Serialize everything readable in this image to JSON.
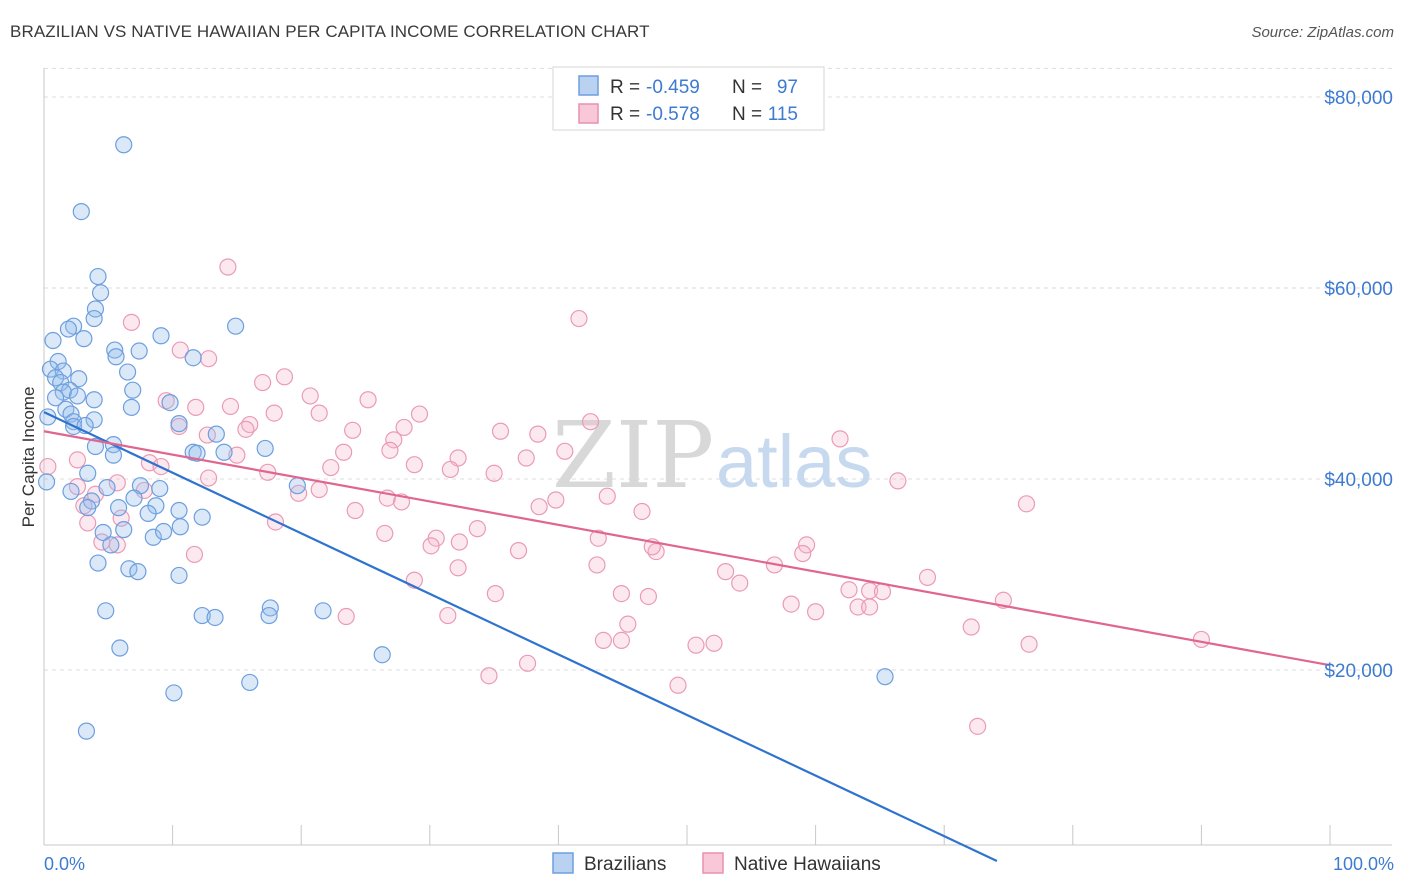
{
  "header": {
    "title": "BRAZILIAN VS NATIVE HAWAIIAN PER CAPITA INCOME CORRELATION CHART",
    "source": "Source: ZipAtlas.com"
  },
  "watermark": {
    "part1": "ZIP",
    "part2": "atlas"
  },
  "legend_top": {
    "rows": [
      {
        "r_label": "R =",
        "r_value": "-0.459",
        "n_label": "N =",
        "n_value": "97",
        "color": "#4a86d6"
      },
      {
        "r_label": "R =",
        "r_value": "-0.578",
        "n_label": "N =",
        "n_value": "115",
        "color": "#e87ba0"
      }
    ]
  },
  "legend_bottom": {
    "items": [
      {
        "label": "Brazilians",
        "color": "#4a86d6"
      },
      {
        "label": "Native Hawaiians",
        "color": "#e87ba0"
      }
    ]
  },
  "chart_data": {
    "type": "scatter",
    "title": "BRAZILIAN VS NATIVE HAWAIIAN PER CAPITA INCOME CORRELATION CHART",
    "xlabel": "",
    "ylabel": "Per Capita Income",
    "xlim": [
      0,
      100
    ],
    "ylim": [
      0,
      85000
    ],
    "x_tick_labels": [
      "0.0%",
      "100.0%"
    ],
    "y_ticks": [
      20000,
      40000,
      60000,
      80000
    ],
    "y_tick_labels": [
      "$20,000",
      "$40,000",
      "$60,000",
      "$80,000"
    ],
    "grid": true,
    "legend_position": "top-center",
    "series": [
      {
        "name": "Brazilians",
        "color": "#4a86d6",
        "r": -0.459,
        "n": 97,
        "trend": {
          "x": [
            0,
            74.1
          ],
          "y": [
            47000,
            0
          ]
        },
        "points": [
          [
            6.2,
            75000
          ],
          [
            2.9,
            68000
          ],
          [
            4.2,
            61200
          ],
          [
            4.4,
            59500
          ],
          [
            4.0,
            57800
          ],
          [
            3.9,
            56800
          ],
          [
            2.3,
            56000
          ],
          [
            1.9,
            55700
          ],
          [
            14.9,
            56000
          ],
          [
            0.7,
            54500
          ],
          [
            9.1,
            55000
          ],
          [
            3.1,
            54700
          ],
          [
            5.5,
            53500
          ],
          [
            7.4,
            53400
          ],
          [
            11.6,
            52700
          ],
          [
            5.6,
            52800
          ],
          [
            1.1,
            52300
          ],
          [
            0.5,
            51500
          ],
          [
            1.5,
            51300
          ],
          [
            6.5,
            51200
          ],
          [
            0.9,
            50600
          ],
          [
            2.7,
            50500
          ],
          [
            1.3,
            50100
          ],
          [
            2.0,
            49300
          ],
          [
            6.9,
            49300
          ],
          [
            1.5,
            49100
          ],
          [
            0.9,
            48500
          ],
          [
            2.6,
            48700
          ],
          [
            3.9,
            48300
          ],
          [
            9.8,
            48000
          ],
          [
            6.8,
            47500
          ],
          [
            1.7,
            47300
          ],
          [
            2.1,
            46800
          ],
          [
            0.3,
            46500
          ],
          [
            3.9,
            46200
          ],
          [
            2.3,
            46000
          ],
          [
            2.3,
            45500
          ],
          [
            3.2,
            45600
          ],
          [
            10.5,
            45800
          ],
          [
            13.4,
            44700
          ],
          [
            5.4,
            43600
          ],
          [
            4.0,
            43400
          ],
          [
            14.0,
            42800
          ],
          [
            11.6,
            42800
          ],
          [
            11.9,
            42700
          ],
          [
            17.2,
            43200
          ],
          [
            5.4,
            42500
          ],
          [
            3.4,
            40600
          ],
          [
            0.2,
            39700
          ],
          [
            19.7,
            39300
          ],
          [
            2.1,
            38700
          ],
          [
            7.5,
            39300
          ],
          [
            9.0,
            39000
          ],
          [
            4.9,
            39100
          ],
          [
            7.0,
            38000
          ],
          [
            8.7,
            37200
          ],
          [
            3.7,
            37700
          ],
          [
            5.8,
            37000
          ],
          [
            3.4,
            37000
          ],
          [
            8.1,
            36400
          ],
          [
            12.3,
            36000
          ],
          [
            10.5,
            36700
          ],
          [
            4.6,
            34400
          ],
          [
            6.2,
            34700
          ],
          [
            8.5,
            33900
          ],
          [
            10.6,
            35000
          ],
          [
            9.3,
            34500
          ],
          [
            5.2,
            33100
          ],
          [
            4.2,
            31200
          ],
          [
            6.6,
            30600
          ],
          [
            7.3,
            30300
          ],
          [
            10.5,
            29900
          ],
          [
            4.8,
            26200
          ],
          [
            12.3,
            25700
          ],
          [
            13.3,
            25500
          ],
          [
            17.6,
            26500
          ],
          [
            17.5,
            25700
          ],
          [
            21.7,
            26200
          ],
          [
            5.9,
            22300
          ],
          [
            26.3,
            21600
          ],
          [
            16.0,
            18700
          ],
          [
            10.1,
            17600
          ],
          [
            3.3,
            13600
          ],
          [
            65.4,
            19300
          ]
        ]
      },
      {
        "name": "Native Hawaiians",
        "color": "#e87ba0",
        "r": -0.578,
        "n": 115,
        "trend": {
          "x": [
            0,
            100
          ],
          "y": [
            45000,
            20500
          ]
        },
        "points": [
          [
            14.3,
            62200
          ],
          [
            41.6,
            56800
          ],
          [
            6.8,
            56400
          ],
          [
            10.6,
            53500
          ],
          [
            12.8,
            52600
          ],
          [
            18.7,
            50700
          ],
          [
            17.0,
            50100
          ],
          [
            20.7,
            48700
          ],
          [
            25.2,
            48300
          ],
          [
            9.5,
            48200
          ],
          [
            11.8,
            47500
          ],
          [
            14.5,
            47600
          ],
          [
            17.9,
            46900
          ],
          [
            21.4,
            46900
          ],
          [
            29.2,
            46800
          ],
          [
            42.5,
            46000
          ],
          [
            16.0,
            45700
          ],
          [
            10.5,
            45500
          ],
          [
            15.7,
            45200
          ],
          [
            28.0,
            45400
          ],
          [
            24.0,
            45100
          ],
          [
            35.5,
            45000
          ],
          [
            38.4,
            44700
          ],
          [
            12.7,
            44600
          ],
          [
            27.2,
            44100
          ],
          [
            61.9,
            44200
          ],
          [
            26.9,
            43000
          ],
          [
            23.3,
            42800
          ],
          [
            15.0,
            42500
          ],
          [
            40.5,
            42900
          ],
          [
            32.2,
            42200
          ],
          [
            37.5,
            42200
          ],
          [
            2.6,
            42000
          ],
          [
            8.2,
            41700
          ],
          [
            9.1,
            41300
          ],
          [
            0.3,
            41300
          ],
          [
            22.3,
            41200
          ],
          [
            28.8,
            41500
          ],
          [
            31.6,
            41000
          ],
          [
            17.4,
            40700
          ],
          [
            35.0,
            40600
          ],
          [
            12.8,
            40100
          ],
          [
            66.4,
            39800
          ],
          [
            2.6,
            39200
          ],
          [
            5.7,
            39600
          ],
          [
            21.4,
            38900
          ],
          [
            7.8,
            38800
          ],
          [
            4.0,
            38400
          ],
          [
            19.8,
            38500
          ],
          [
            26.7,
            38000
          ],
          [
            39.8,
            37800
          ],
          [
            43.8,
            38200
          ],
          [
            27.8,
            37600
          ],
          [
            38.5,
            37100
          ],
          [
            76.4,
            37400
          ],
          [
            3.1,
            37200
          ],
          [
            24.2,
            36700
          ],
          [
            46.5,
            36600
          ],
          [
            6.0,
            35900
          ],
          [
            18.0,
            35500
          ],
          [
            3.4,
            35400
          ],
          [
            33.7,
            34800
          ],
          [
            26.5,
            34300
          ],
          [
            30.5,
            33800
          ],
          [
            43.1,
            33800
          ],
          [
            4.5,
            33400
          ],
          [
            30.1,
            33000
          ],
          [
            5.7,
            33100
          ],
          [
            32.3,
            33400
          ],
          [
            59.3,
            33100
          ],
          [
            47.6,
            32400
          ],
          [
            36.9,
            32500
          ],
          [
            59.0,
            32200
          ],
          [
            47.3,
            32900
          ],
          [
            11.7,
            32100
          ],
          [
            32.2,
            30700
          ],
          [
            43.0,
            31000
          ],
          [
            56.8,
            31000
          ],
          [
            53.0,
            30300
          ],
          [
            68.7,
            29700
          ],
          [
            28.8,
            29400
          ],
          [
            54.1,
            29100
          ],
          [
            62.6,
            28400
          ],
          [
            64.2,
            28300
          ],
          [
            65.2,
            28200
          ],
          [
            35.1,
            28000
          ],
          [
            44.9,
            28000
          ],
          [
            47.0,
            27700
          ],
          [
            74.6,
            27300
          ],
          [
            58.1,
            26900
          ],
          [
            63.3,
            26600
          ],
          [
            64.2,
            26600
          ],
          [
            60.0,
            26100
          ],
          [
            31.4,
            25700
          ],
          [
            23.5,
            25600
          ],
          [
            45.4,
            24800
          ],
          [
            72.1,
            24500
          ],
          [
            43.5,
            23100
          ],
          [
            44.9,
            23100
          ],
          [
            52.1,
            22800
          ],
          [
            50.7,
            22600
          ],
          [
            76.6,
            22700
          ],
          [
            90.0,
            23200
          ],
          [
            37.6,
            20700
          ],
          [
            34.6,
            19400
          ],
          [
            49.3,
            18400
          ],
          [
            72.6,
            14100
          ]
        ]
      }
    ]
  }
}
